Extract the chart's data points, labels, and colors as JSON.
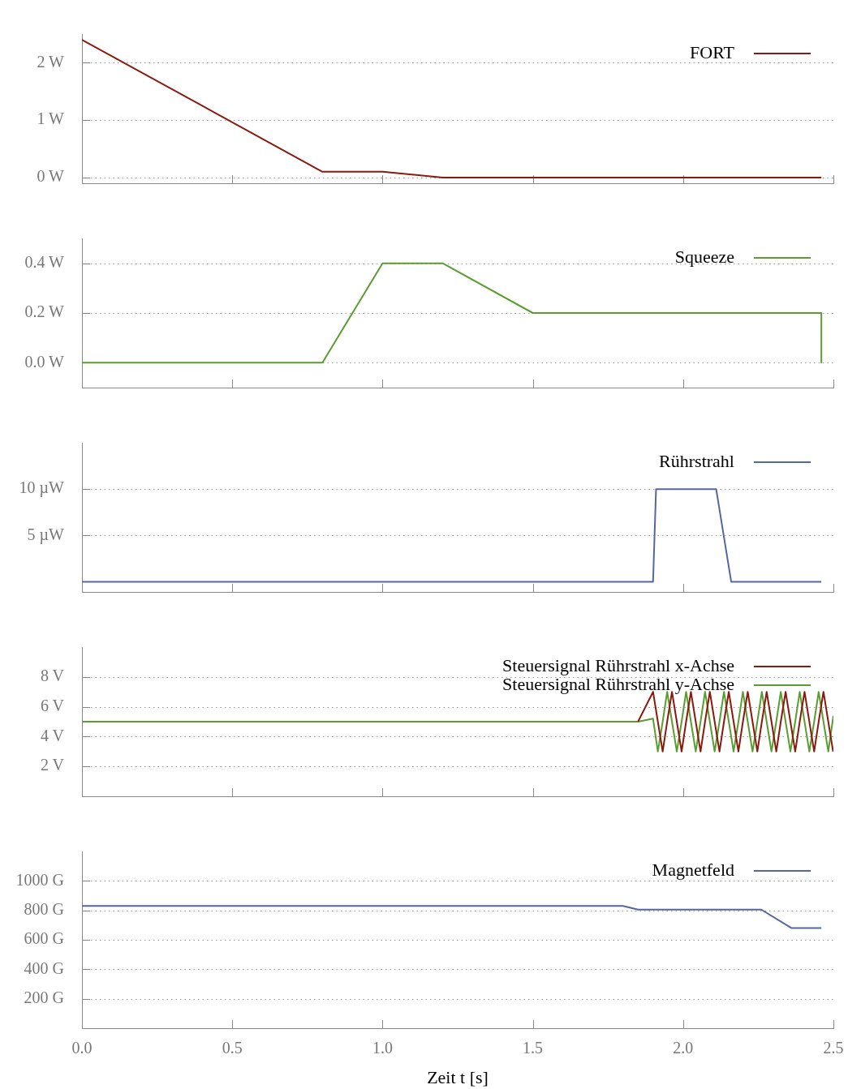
{
  "chart_data": [
    {
      "type": "line",
      "legend": "top right",
      "grid": "y",
      "tick_labels": "y",
      "xlim": [
        0,
        2.5
      ],
      "ylim": [
        -0.1,
        2.5
      ],
      "xticks": [
        {
          "value": 0,
          "label": null
        },
        {
          "value": 0.5,
          "label": null
        },
        {
          "value": 1,
          "label": null
        },
        {
          "value": 1.5,
          "label": null
        },
        {
          "value": 2,
          "label": null
        },
        {
          "value": 2.5,
          "label": null
        }
      ],
      "yticks": [
        {
          "value": 0,
          "label": "0 W"
        },
        {
          "value": 1,
          "label": "1 W"
        },
        {
          "value": 2,
          "label": "2 W"
        }
      ],
      "series": [
        {
          "name": "FORT",
          "color": "#8b1a0e",
          "x": [
            0,
            0.8,
            1.0,
            1.2,
            2.46
          ],
          "values": [
            2.4,
            0.1,
            0.1,
            0,
            0
          ]
        }
      ]
    },
    {
      "type": "line",
      "legend": "top right",
      "grid": "y",
      "tick_labels": "y",
      "xlim": [
        0,
        2.5
      ],
      "ylim": [
        -0.1,
        0.5
      ],
      "xticks": [
        {
          "value": 0,
          "label": null
        },
        {
          "value": 0.5,
          "label": null
        },
        {
          "value": 1,
          "label": null
        },
        {
          "value": 1.5,
          "label": null
        },
        {
          "value": 2,
          "label": null
        },
        {
          "value": 2.5,
          "label": null
        }
      ],
      "yticks": [
        {
          "value": 0,
          "label": "0.0 W"
        },
        {
          "value": 0.2,
          "label": "0.2 W"
        },
        {
          "value": 0.4,
          "label": "0.4 W"
        }
      ],
      "series": [
        {
          "name": "Squeeze",
          "color": "#5a9e32",
          "x": [
            0,
            0.8,
            1.0,
            1.2,
            1.5,
            2.46,
            2.46
          ],
          "values": [
            0,
            0,
            0.4,
            0.4,
            0.2,
            0.2,
            0
          ]
        }
      ]
    },
    {
      "type": "line",
      "legend": "top right",
      "grid": "y",
      "tick_labels": "y",
      "xlim": [
        0,
        2.5
      ],
      "ylim": [
        -1.1,
        15
      ],
      "xticks": [
        {
          "value": 0,
          "label": null
        },
        {
          "value": 0.5,
          "label": null
        },
        {
          "value": 1,
          "label": null
        },
        {
          "value": 1.5,
          "label": null
        },
        {
          "value": 2,
          "label": null
        },
        {
          "value": 2.5,
          "label": null
        }
      ],
      "yticks": [
        {
          "value": 5,
          "label": "5 µW"
        },
        {
          "value": 10,
          "label": "10 µW"
        }
      ],
      "series": [
        {
          "name": "Rührstrahl",
          "color": "#5566a0",
          "x": [
            0,
            1.9,
            1.91,
            2.11,
            2.16,
            2.46
          ],
          "values": [
            0,
            0,
            10,
            10,
            0,
            0
          ]
        }
      ]
    },
    {
      "type": "line",
      "legend": "top right",
      "grid": "y",
      "tick_labels": "y",
      "xlim": [
        0,
        2.5
      ],
      "ylim": [
        0,
        10
      ],
      "xticks": [
        {
          "value": 0,
          "label": null
        },
        {
          "value": 0.5,
          "label": null
        },
        {
          "value": 1,
          "label": null
        },
        {
          "value": 1.5,
          "label": null
        },
        {
          "value": 2,
          "label": null
        },
        {
          "value": 2.5,
          "label": null
        }
      ],
      "yticks": [
        {
          "value": 2,
          "label": "2 V"
        },
        {
          "value": 4,
          "label": "4 V"
        },
        {
          "value": 6,
          "label": "6 V"
        },
        {
          "value": 8,
          "label": "8 V"
        }
      ],
      "series": [
        {
          "name": "Steuersignal Rührstrahl x-Achse",
          "color": "#8b1a0e",
          "x": [
            1.85,
            1.9,
            1.916,
            1.932,
            1.947,
            1.963,
            1.979,
            1.995,
            2.01,
            2.026,
            2.042,
            2.058,
            2.073,
            2.089,
            2.105,
            2.121,
            2.136,
            2.152,
            2.168,
            2.184,
            2.199,
            2.215,
            2.231,
            2.247,
            2.262,
            2.278,
            2.294,
            2.31,
            2.325,
            2.341,
            2.357,
            2.373,
            2.388,
            2.404,
            2.42,
            2.436,
            2.451,
            2.467,
            2.483,
            2.499
          ],
          "values": [
            5,
            7,
            5,
            3,
            5,
            7,
            5,
            3,
            5,
            7,
            5,
            3,
            5,
            7,
            5,
            3,
            5,
            7,
            5,
            3,
            5,
            7,
            5,
            3,
            5,
            7,
            5,
            3,
            5,
            7,
            5,
            3,
            5,
            7,
            5,
            3,
            5,
            7,
            5,
            3
          ]
        },
        {
          "name": "Steuersignal Rührstrahl y-Achse",
          "color": "#5a9e32",
          "x": [
            0,
            1.85,
            1.9,
            1.916,
            1.932,
            1.947,
            1.963,
            1.979,
            1.995,
            2.01,
            2.026,
            2.042,
            2.058,
            2.073,
            2.089,
            2.105,
            2.121,
            2.136,
            2.152,
            2.168,
            2.184,
            2.199,
            2.215,
            2.231,
            2.247,
            2.262,
            2.278,
            2.294,
            2.31,
            2.325,
            2.341,
            2.357,
            2.373,
            2.388,
            2.404,
            2.42,
            2.436,
            2.451,
            2.467,
            2.483,
            2.5
          ],
          "values": [
            5,
            5,
            5.2,
            3,
            5,
            7,
            5,
            3,
            5,
            7,
            5,
            3,
            5,
            7,
            5,
            3,
            5,
            7,
            5,
            3,
            5,
            7,
            5,
            3,
            5,
            7,
            5,
            3,
            5,
            7,
            5,
            3,
            5,
            7,
            5,
            3,
            5,
            7,
            5,
            3,
            5.4
          ]
        }
      ]
    },
    {
      "type": "line",
      "legend": "top right",
      "grid": "y",
      "xlabel": "Zeit t [s]",
      "xlim": [
        0,
        2.5
      ],
      "ylim": [
        0,
        1200
      ],
      "xticks": [
        {
          "value": 0,
          "label": "0.0"
        },
        {
          "value": 0.5,
          "label": "0.5"
        },
        {
          "value": 1,
          "label": "1.0"
        },
        {
          "value": 1.5,
          "label": "1.5"
        },
        {
          "value": 2,
          "label": "2.0"
        },
        {
          "value": 2.5,
          "label": "2.5"
        }
      ],
      "yticks": [
        {
          "value": 200,
          "label": "200 G"
        },
        {
          "value": 400,
          "label": "400 G"
        },
        {
          "value": 600,
          "label": "600 G"
        },
        {
          "value": 800,
          "label": "800 G"
        },
        {
          "value": 1000,
          "label": "1000 G"
        }
      ],
      "series": [
        {
          "name": "Magnetfeld",
          "color": "#5566a0",
          "x": [
            0,
            1.8,
            1.85,
            2.26,
            2.36,
            2.46
          ],
          "values": [
            830,
            830,
            805,
            805,
            680,
            680
          ]
        }
      ]
    }
  ]
}
